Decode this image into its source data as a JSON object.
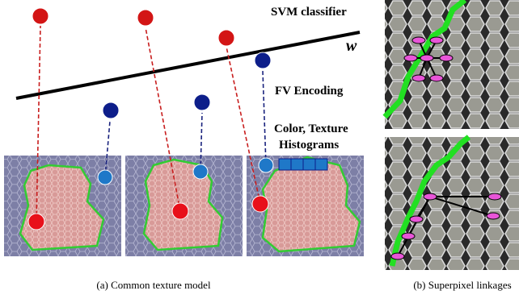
{
  "labels": {
    "svm": "SVM classifier",
    "w": "w",
    "fv": "FV Encoding",
    "color_texture": "Color, Texture",
    "histograms": "Histograms"
  },
  "captions": {
    "a": "(a) Common texture model",
    "b": "(b) Superpixel linkages"
  }
}
